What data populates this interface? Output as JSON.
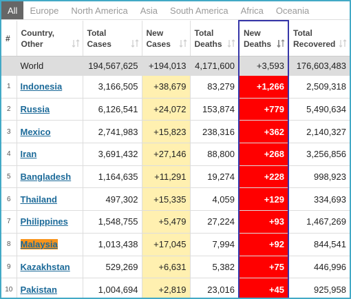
{
  "tabs": [
    "All",
    "Europe",
    "North America",
    "Asia",
    "South America",
    "Africa",
    "Oceania"
  ],
  "table": {
    "headers": [
      "#",
      "Country, Other",
      "Total Cases",
      "New Cases",
      "Total Deaths",
      "New Deaths",
      "Total Recovered"
    ],
    "world": [
      "World",
      "194,567,625",
      "+194,013",
      "4,171,600",
      "+3,593",
      "176,603,483"
    ],
    "rows": [
      [
        "1",
        "Indonesia",
        "3,166,505",
        "+38,679",
        "83,279",
        "+1,266",
        "2,509,318"
      ],
      [
        "2",
        "Russia",
        "6,126,541",
        "+24,072",
        "153,874",
        "+779",
        "5,490,634"
      ],
      [
        "3",
        "Mexico",
        "2,741,983",
        "+15,823",
        "238,316",
        "+362",
        "2,140,327"
      ],
      [
        "4",
        "Iran",
        "3,691,432",
        "+27,146",
        "88,800",
        "+268",
        "3,256,856"
      ],
      [
        "5",
        "Bangladesh",
        "1,164,635",
        "+11,291",
        "19,274",
        "+228",
        "998,923"
      ],
      [
        "6",
        "Thailand",
        "497,302",
        "+15,335",
        "4,059",
        "+129",
        "334,693"
      ],
      [
        "7",
        "Philippines",
        "1,548,755",
        "+5,479",
        "27,224",
        "+93",
        "1,467,269"
      ],
      [
        "8",
        "Malaysia",
        "1,013,438",
        "+17,045",
        "7,994",
        "+92",
        "844,541"
      ],
      [
        "9",
        "Kazakhstan",
        "529,269",
        "+6,631",
        "5,382",
        "+75",
        "446,996"
      ],
      [
        "10",
        "Pakistan",
        "1,004,694",
        "+2,819",
        "23,016",
        "+45",
        "925,958"
      ]
    ]
  }
}
